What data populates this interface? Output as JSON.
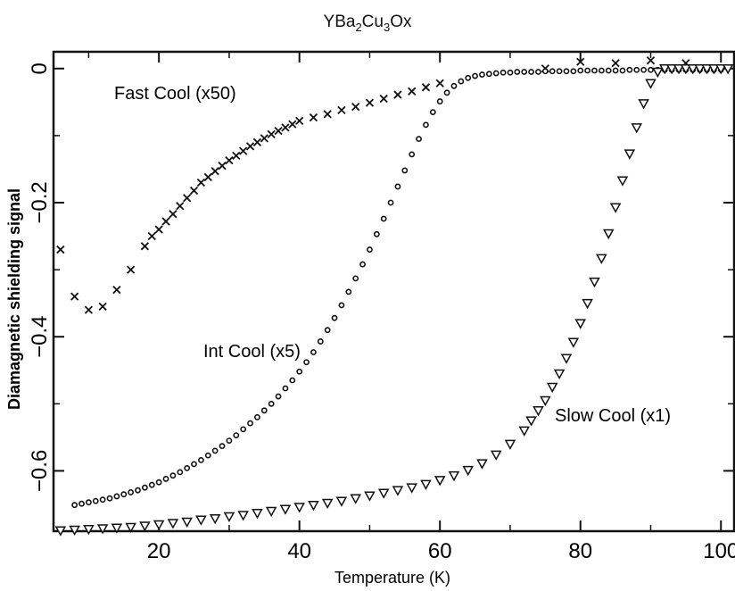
{
  "chart_data": {
    "type": "scatter",
    "title": {
      "base": "YBa",
      "sub1": "2",
      "mid": "Cu",
      "sub2": "3",
      "tail": "Ox"
    },
    "xlabel": "Temperature (K)",
    "ylabel": "Diamagnetic shielding signal",
    "xlim": [
      5,
      102
    ],
    "ylim": [
      -0.69,
      0.025
    ],
    "xticks": [
      20,
      40,
      60,
      80,
      100
    ],
    "yticks": [
      0,
      -0.2,
      -0.4,
      -0.6
    ],
    "ytick_labels": [
      "0",
      "−0.2",
      "−0.4",
      "−0.6"
    ],
    "grid": false,
    "series": [
      {
        "name": "Fast Cool (x50)",
        "marker": "x",
        "points": [
          [
            6,
            -0.27
          ],
          [
            8,
            -0.34
          ],
          [
            10,
            -0.36
          ],
          [
            12,
            -0.355
          ],
          [
            14,
            -0.33
          ],
          [
            16,
            -0.3
          ],
          [
            18,
            -0.265
          ],
          [
            19,
            -0.25
          ],
          [
            20,
            -0.24
          ],
          [
            21,
            -0.228
          ],
          [
            22,
            -0.217
          ],
          [
            23,
            -0.205
          ],
          [
            24,
            -0.193
          ],
          [
            25,
            -0.182
          ],
          [
            26,
            -0.17
          ],
          [
            27,
            -0.162
          ],
          [
            28,
            -0.153
          ],
          [
            29,
            -0.145
          ],
          [
            30,
            -0.137
          ],
          [
            31,
            -0.13
          ],
          [
            32,
            -0.123
          ],
          [
            33,
            -0.116
          ],
          [
            34,
            -0.11
          ],
          [
            35,
            -0.104
          ],
          [
            36,
            -0.098
          ],
          [
            37,
            -0.093
          ],
          [
            38,
            -0.088
          ],
          [
            39,
            -0.083
          ],
          [
            40,
            -0.078
          ],
          [
            42,
            -0.073
          ],
          [
            44,
            -0.068
          ],
          [
            46,
            -0.062
          ],
          [
            48,
            -0.057
          ],
          [
            50,
            -0.051
          ],
          [
            52,
            -0.045
          ],
          [
            54,
            -0.039
          ],
          [
            56,
            -0.034
          ],
          [
            58,
            -0.028
          ],
          [
            60,
            -0.022
          ],
          [
            75,
            0.0
          ],
          [
            80,
            0.01
          ],
          [
            85,
            0.008
          ],
          [
            90,
            0.012
          ],
          [
            95,
            0.008
          ]
        ]
      },
      {
        "name": "Int Cool (x5)",
        "marker": "o",
        "points": [
          [
            8,
            -0.651
          ],
          [
            9,
            -0.649
          ],
          [
            10,
            -0.647
          ],
          [
            11,
            -0.645
          ],
          [
            12,
            -0.643
          ],
          [
            13,
            -0.641
          ],
          [
            14,
            -0.638
          ],
          [
            15,
            -0.635
          ],
          [
            16,
            -0.632
          ],
          [
            17,
            -0.629
          ],
          [
            18,
            -0.625
          ],
          [
            19,
            -0.621
          ],
          [
            20,
            -0.617
          ],
          [
            21,
            -0.612
          ],
          [
            22,
            -0.607
          ],
          [
            23,
            -0.602
          ],
          [
            24,
            -0.596
          ],
          [
            25,
            -0.59
          ],
          [
            26,
            -0.584
          ],
          [
            27,
            -0.577
          ],
          [
            28,
            -0.57
          ],
          [
            29,
            -0.563
          ],
          [
            30,
            -0.555
          ],
          [
            31,
            -0.547
          ],
          [
            32,
            -0.538
          ],
          [
            33,
            -0.529
          ],
          [
            34,
            -0.52
          ],
          [
            35,
            -0.51
          ],
          [
            36,
            -0.5
          ],
          [
            37,
            -0.489
          ],
          [
            38,
            -0.477
          ],
          [
            39,
            -0.465
          ],
          [
            40,
            -0.452
          ],
          [
            41,
            -0.438
          ],
          [
            42,
            -0.423
          ],
          [
            43,
            -0.407
          ],
          [
            44,
            -0.39
          ],
          [
            45,
            -0.372
          ],
          [
            46,
            -0.353
          ],
          [
            47,
            -0.333
          ],
          [
            48,
            -0.313
          ],
          [
            49,
            -0.292
          ],
          [
            50,
            -0.27
          ],
          [
            51,
            -0.247
          ],
          [
            52,
            -0.224
          ],
          [
            53,
            -0.2
          ],
          [
            54,
            -0.176
          ],
          [
            55,
            -0.152
          ],
          [
            56,
            -0.128
          ],
          [
            57,
            -0.105
          ],
          [
            58,
            -0.084
          ],
          [
            59,
            -0.065
          ],
          [
            60,
            -0.049
          ],
          [
            61,
            -0.036
          ],
          [
            62,
            -0.026
          ],
          [
            63,
            -0.019
          ],
          [
            64,
            -0.014
          ],
          [
            65,
            -0.011
          ],
          [
            66,
            -0.009
          ],
          [
            67,
            -0.008
          ],
          [
            68,
            -0.007
          ],
          [
            69,
            -0.006
          ],
          [
            70,
            -0.006
          ],
          [
            71,
            -0.005
          ],
          [
            72,
            -0.005
          ],
          [
            73,
            -0.005
          ],
          [
            74,
            -0.005
          ],
          [
            75,
            -0.004
          ],
          [
            76,
            -0.004
          ],
          [
            77,
            -0.004
          ],
          [
            78,
            -0.004
          ],
          [
            79,
            -0.004
          ],
          [
            80,
            -0.003
          ],
          [
            81,
            -0.003
          ],
          [
            82,
            -0.003
          ],
          [
            83,
            -0.003
          ],
          [
            84,
            -0.003
          ],
          [
            85,
            -0.003
          ],
          [
            86,
            -0.003
          ],
          [
            87,
            -0.002
          ],
          [
            88,
            -0.002
          ],
          [
            89,
            -0.002
          ],
          [
            90,
            -0.002
          ],
          [
            91,
            -0.002
          ],
          [
            92,
            -0.002
          ],
          [
            93,
            -0.002
          ],
          [
            94,
            -0.002
          ],
          [
            95,
            -0.002
          ],
          [
            96,
            -0.002
          ],
          [
            97,
            -0.002
          ],
          [
            98,
            -0.002
          ],
          [
            99,
            -0.002
          ],
          [
            100,
            -0.002
          ]
        ]
      },
      {
        "name": "Slow Cool (x1)",
        "marker": "triangle-down",
        "points": [
          [
            6,
            -0.689
          ],
          [
            8,
            -0.688
          ],
          [
            10,
            -0.687
          ],
          [
            12,
            -0.686
          ],
          [
            14,
            -0.685
          ],
          [
            16,
            -0.684
          ],
          [
            18,
            -0.682
          ],
          [
            20,
            -0.68
          ],
          [
            22,
            -0.678
          ],
          [
            24,
            -0.676
          ],
          [
            26,
            -0.673
          ],
          [
            28,
            -0.671
          ],
          [
            30,
            -0.668
          ],
          [
            32,
            -0.666
          ],
          [
            34,
            -0.663
          ],
          [
            36,
            -0.66
          ],
          [
            38,
            -0.657
          ],
          [
            40,
            -0.654
          ],
          [
            42,
            -0.651
          ],
          [
            44,
            -0.648
          ],
          [
            46,
            -0.645
          ],
          [
            48,
            -0.641
          ],
          [
            50,
            -0.637
          ],
          [
            52,
            -0.633
          ],
          [
            54,
            -0.629
          ],
          [
            56,
            -0.625
          ],
          [
            58,
            -0.62
          ],
          [
            60,
            -0.614
          ],
          [
            62,
            -0.607
          ],
          [
            64,
            -0.599
          ],
          [
            66,
            -0.589
          ],
          [
            68,
            -0.576
          ],
          [
            70,
            -0.56
          ],
          [
            72,
            -0.54
          ],
          [
            73,
            -0.525
          ],
          [
            74,
            -0.51
          ],
          [
            75,
            -0.495
          ],
          [
            76,
            -0.475
          ],
          [
            77,
            -0.455
          ],
          [
            78,
            -0.432
          ],
          [
            79,
            -0.408
          ],
          [
            80,
            -0.38
          ],
          [
            81,
            -0.35
          ],
          [
            82,
            -0.318
          ],
          [
            83,
            -0.283
          ],
          [
            84,
            -0.246
          ],
          [
            85,
            -0.207
          ],
          [
            86,
            -0.167
          ],
          [
            87,
            -0.127
          ],
          [
            88,
            -0.088
          ],
          [
            89,
            -0.052
          ],
          [
            90,
            -0.022
          ],
          [
            91,
            -0.005
          ],
          [
            92,
            0.0
          ],
          [
            93,
            0.0
          ],
          [
            94,
            0.0
          ],
          [
            95,
            0.0
          ],
          [
            96,
            0.0
          ],
          [
            97,
            0.0
          ],
          [
            98,
            0.0
          ],
          [
            99,
            0.0
          ],
          [
            100,
            0.0
          ],
          [
            101,
            0.0
          ]
        ]
      }
    ]
  }
}
